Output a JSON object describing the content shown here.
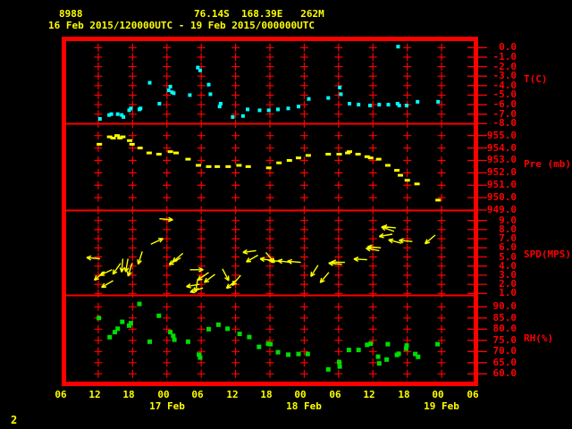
{
  "header": {
    "station_id": "8988",
    "location": "76.14S  168.39E   262M",
    "time_range": "16 Feb 2015/120000UTC - 19 Feb 2015/000000UTC"
  },
  "footer": {
    "page_number": "2"
  },
  "colors": {
    "background": "#000000",
    "frame": "#fe0000",
    "text": "#ffff00",
    "temperature": "#00ffff",
    "pressure": "#ffff00",
    "wind": "#ffff00",
    "humidity": "#00dd00"
  },
  "chart_data": {
    "type": "scatter",
    "title": "16 Feb 2015/120000UTC - 19 Feb 2015/000000UTC",
    "x_axis": {
      "hours_span": 72,
      "hour_labels": [
        "06",
        "12",
        "18",
        "00",
        "06",
        "12",
        "18",
        "00",
        "06",
        "12",
        "18",
        "00",
        "06"
      ],
      "date_labels": [
        {
          "label": "17 Feb",
          "tick_index": 3
        },
        {
          "label": "18 Feb",
          "tick_index": 7
        },
        {
          "label": "19 Feb",
          "tick_index": 11
        }
      ],
      "grid": true
    },
    "panels": [
      {
        "name": "temperature",
        "axis_label": "T(C)",
        "color": "#00ffff",
        "marker": "square",
        "marker_size": 4,
        "ticks": [
          0.0,
          -1.0,
          -2.0,
          -3.0,
          -4.0,
          -5.0,
          -6.0,
          -7.0,
          -8.0
        ],
        "points": [
          [
            6.3,
            -7.5
          ],
          [
            7.9,
            -7.1
          ],
          [
            8.3,
            -7.0
          ],
          [
            9.4,
            -7.0
          ],
          [
            10.1,
            -7.1
          ],
          [
            10.4,
            -7.3
          ],
          [
            11.4,
            -6.6
          ],
          [
            11.7,
            -6.4
          ],
          [
            13.2,
            -6.5
          ],
          [
            13.4,
            -6.4
          ],
          [
            15.0,
            -3.7
          ],
          [
            16.7,
            -5.9
          ],
          [
            18.3,
            -4.5
          ],
          [
            18.6,
            -4.1
          ],
          [
            18.9,
            -4.7
          ],
          [
            19.2,
            -4.8
          ],
          [
            22.0,
            -5.0
          ],
          [
            23.4,
            -2.1
          ],
          [
            23.8,
            -2.4
          ],
          [
            25.3,
            -3.9
          ],
          [
            25.6,
            -4.9
          ],
          [
            27.2,
            -6.2
          ],
          [
            27.4,
            -5.9
          ],
          [
            29.5,
            -7.3
          ],
          [
            31.3,
            -7.2
          ],
          [
            32.1,
            -6.5
          ],
          [
            34.2,
            -6.6
          ],
          [
            35.8,
            -6.6
          ],
          [
            37.4,
            -6.5
          ],
          [
            39.2,
            -6.4
          ],
          [
            41.0,
            -6.2
          ],
          [
            42.8,
            -5.4
          ],
          [
            46.2,
            -5.3
          ],
          [
            48.2,
            -4.2
          ],
          [
            48.4,
            -4.9
          ],
          [
            49.9,
            -5.9
          ],
          [
            51.5,
            -6.0
          ],
          [
            53.5,
            -6.1
          ],
          [
            55.1,
            -6.0
          ],
          [
            56.7,
            -6.0
          ],
          [
            58.3,
            -5.9
          ],
          [
            58.4,
            0.1
          ],
          [
            58.6,
            -6.1
          ],
          [
            59.9,
            -6.1
          ],
          [
            61.8,
            -5.7
          ],
          [
            65.4,
            -5.7
          ]
        ]
      },
      {
        "name": "pressure",
        "axis_label": "Pre (mb)",
        "color": "#ffff00",
        "marker": "dash",
        "marker_size": 6,
        "ticks": [
          955.0,
          954.0,
          953.0,
          952.0,
          951.0,
          950.0,
          949.0
        ],
        "points": [
          [
            6.2,
            954.3
          ],
          [
            8.0,
            954.9
          ],
          [
            8.6,
            954.8
          ],
          [
            9.3,
            955.0
          ],
          [
            9.8,
            954.8
          ],
          [
            10.3,
            954.9
          ],
          [
            11.5,
            954.6
          ],
          [
            11.9,
            954.3
          ],
          [
            13.3,
            954.0
          ],
          [
            14.9,
            953.6
          ],
          [
            16.6,
            953.5
          ],
          [
            18.6,
            953.7
          ],
          [
            19.6,
            953.6
          ],
          [
            21.7,
            953.1
          ],
          [
            23.5,
            952.6
          ],
          [
            25.3,
            952.5
          ],
          [
            26.8,
            952.5
          ],
          [
            28.7,
            952.5
          ],
          [
            30.6,
            952.6
          ],
          [
            32.2,
            952.5
          ],
          [
            35.8,
            952.4
          ],
          [
            37.6,
            952.8
          ],
          [
            39.4,
            953.0
          ],
          [
            41.0,
            953.2
          ],
          [
            42.7,
            953.4
          ],
          [
            46.2,
            953.5
          ],
          [
            48.1,
            953.5
          ],
          [
            49.6,
            953.6
          ],
          [
            49.9,
            953.7
          ],
          [
            51.4,
            953.5
          ],
          [
            53.0,
            953.3
          ],
          [
            53.6,
            953.2
          ],
          [
            55.0,
            953.1
          ],
          [
            56.6,
            952.6
          ],
          [
            58.2,
            952.2
          ],
          [
            58.8,
            951.8
          ],
          [
            60.0,
            951.4
          ],
          [
            61.7,
            951.1
          ],
          [
            65.4,
            949.8
          ]
        ]
      },
      {
        "name": "wind-speed",
        "axis_label": "SPD(MPS)",
        "color": "#ffff00",
        "marker": "arrow",
        "arrow_length": 15,
        "ticks": [
          9.0,
          8.0,
          7.0,
          6.0,
          5.0,
          4.0,
          3.0,
          2.0,
          1.0
        ],
        "arrows": [
          [
            6.3,
            4.8,
            185
          ],
          [
            7.1,
            3.4,
            140
          ],
          [
            8.4,
            3.6,
            155
          ],
          [
            8.6,
            2.4,
            150
          ],
          [
            9.9,
            4.3,
            125
          ],
          [
            10.3,
            4.8,
            95
          ],
          [
            11.2,
            4.8,
            100
          ],
          [
            11.9,
            4.3,
            107
          ],
          [
            13.7,
            5.6,
            108
          ],
          [
            15.2,
            6.4,
            335
          ],
          [
            16.7,
            9.2,
            5
          ],
          [
            20.4,
            4.9,
            150
          ],
          [
            20.8,
            5.4,
            140
          ],
          [
            22.0,
            3.6,
            0
          ],
          [
            23.4,
            2.6,
            100
          ],
          [
            23.7,
            2.0,
            170
          ],
          [
            24.3,
            1.6,
            162
          ],
          [
            25.3,
            3.3,
            145
          ],
          [
            26.4,
            3.1,
            143
          ],
          [
            27.7,
            3.7,
            62
          ],
          [
            30.2,
            2.5,
            140
          ],
          [
            30.9,
            3.0,
            130
          ],
          [
            33.6,
            5.7,
            172
          ],
          [
            33.9,
            5.2,
            150
          ],
          [
            35.3,
            5.5,
            50
          ],
          [
            36.6,
            4.6,
            188
          ],
          [
            38.1,
            4.5,
            185
          ],
          [
            39.7,
            4.4,
            187
          ],
          [
            41.4,
            4.4,
            185
          ],
          [
            44.4,
            4.1,
            122
          ],
          [
            46.3,
            3.3,
            130
          ],
          [
            48.6,
            4.2,
            185
          ],
          [
            49.1,
            4.4,
            182
          ],
          [
            53.0,
            4.7,
            183
          ],
          [
            55.1,
            5.7,
            190
          ],
          [
            55.4,
            6.0,
            185
          ],
          [
            57.4,
            7.5,
            170
          ],
          [
            57.7,
            7.8,
            200
          ],
          [
            58.0,
            8.2,
            185
          ],
          [
            59.0,
            6.5,
            195
          ],
          [
            60.9,
            6.7,
            185
          ],
          [
            64.9,
            7.4,
            140
          ]
        ]
      },
      {
        "name": "relative-humidity",
        "axis_label": "RH(%)",
        "color": "#00dd00",
        "marker": "square",
        "marker_size": 5,
        "ticks": [
          90.0,
          85.0,
          80.0,
          75.0,
          70.0,
          65.0,
          60.0
        ],
        "points": [
          [
            6.1,
            85.0
          ],
          [
            8.0,
            76.4
          ],
          [
            8.9,
            78.7
          ],
          [
            9.4,
            80.2
          ],
          [
            10.2,
            83.3
          ],
          [
            11.4,
            81.6
          ],
          [
            11.7,
            82.7
          ],
          [
            13.2,
            91.3
          ],
          [
            15.0,
            74.4
          ],
          [
            16.6,
            86.0
          ],
          [
            18.6,
            78.7
          ],
          [
            19.1,
            77.0
          ],
          [
            19.3,
            75.3
          ],
          [
            21.7,
            74.4
          ],
          [
            23.6,
            68.6
          ],
          [
            23.8,
            67.3
          ],
          [
            25.3,
            80.0
          ],
          [
            27.0,
            82.0
          ],
          [
            28.6,
            80.2
          ],
          [
            30.7,
            77.9
          ],
          [
            32.4,
            76.5
          ],
          [
            34.1,
            72.1
          ],
          [
            35.7,
            73.5
          ],
          [
            36.1,
            73.3
          ],
          [
            37.4,
            69.7
          ],
          [
            39.2,
            68.6
          ],
          [
            41.0,
            68.9
          ],
          [
            42.6,
            68.9
          ],
          [
            46.2,
            62.0
          ],
          [
            48.1,
            65.3
          ],
          [
            48.2,
            63.3
          ],
          [
            49.8,
            70.7
          ],
          [
            51.5,
            70.7
          ],
          [
            53.0,
            73.0
          ],
          [
            53.6,
            73.5
          ],
          [
            54.9,
            67.7
          ],
          [
            55.1,
            64.7
          ],
          [
            56.4,
            66.4
          ],
          [
            56.6,
            73.3
          ],
          [
            58.2,
            68.5
          ],
          [
            58.5,
            69.0
          ],
          [
            59.8,
            71.3
          ],
          [
            59.9,
            72.7
          ],
          [
            61.4,
            68.9
          ],
          [
            61.9,
            67.6
          ],
          [
            65.3,
            73.3
          ]
        ]
      }
    ]
  }
}
